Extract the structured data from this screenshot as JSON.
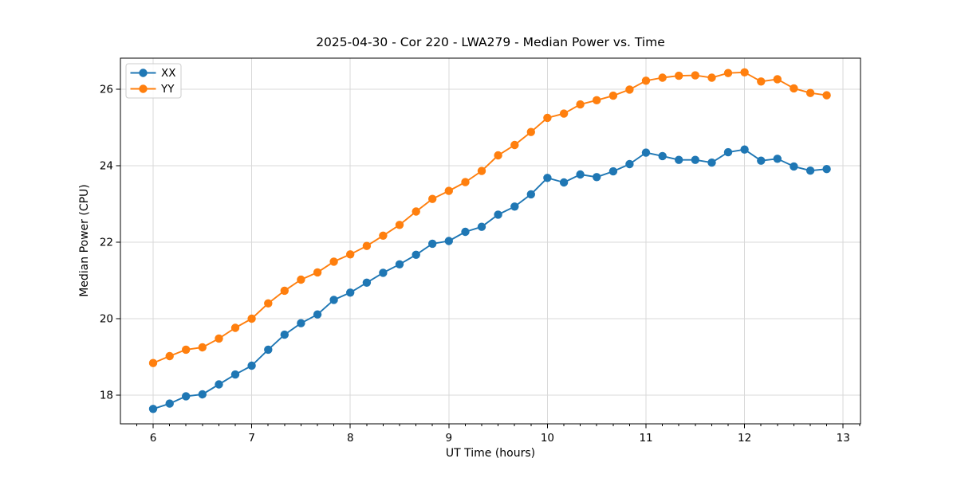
{
  "chart_data": {
    "type": "line",
    "title": "2025-04-30 - Cor 220 - LWA279 - Median Power vs. Time",
    "xlabel": "UT Time (hours)",
    "ylabel": "Median Power (CPU)",
    "xlim": [
      5.668,
      13.176
    ],
    "ylim": [
      17.25,
      26.81
    ],
    "xticks": [
      6,
      7,
      8,
      9,
      10,
      11,
      12,
      13
    ],
    "yticks": [
      18,
      20,
      22,
      24,
      26
    ],
    "x_minor_step_hours": 0.1667,
    "grid": true,
    "legend_position": "upper left",
    "x": [
      6.0,
      6.167,
      6.333,
      6.5,
      6.667,
      6.833,
      7.0,
      7.167,
      7.333,
      7.5,
      7.667,
      7.833,
      8.0,
      8.167,
      8.333,
      8.5,
      8.667,
      8.833,
      9.0,
      9.167,
      9.333,
      9.5,
      9.667,
      9.833,
      10.0,
      10.167,
      10.333,
      10.5,
      10.667,
      10.833,
      11.0,
      11.167,
      11.333,
      11.5,
      11.667,
      11.833,
      12.0,
      12.167,
      12.333,
      12.5,
      12.667,
      12.833
    ],
    "series": [
      {
        "name": "XX",
        "color": "#1f77b4",
        "values": [
          17.64,
          17.78,
          17.97,
          18.02,
          18.28,
          18.54,
          18.77,
          19.19,
          19.58,
          19.88,
          20.11,
          20.49,
          20.68,
          20.94,
          21.2,
          21.42,
          21.67,
          21.96,
          22.03,
          22.27,
          22.4,
          22.72,
          22.93,
          23.25,
          23.68,
          23.56,
          23.77,
          23.7,
          23.85,
          24.04,
          24.34,
          24.25,
          24.15,
          24.15,
          24.08,
          24.35,
          24.42,
          24.13,
          24.18,
          23.98,
          23.87,
          23.91
        ]
      },
      {
        "name": "YY",
        "color": "#ff7f0e",
        "values": [
          18.84,
          19.02,
          19.19,
          19.25,
          19.48,
          19.76,
          20.0,
          20.4,
          20.73,
          21.02,
          21.21,
          21.49,
          21.68,
          21.9,
          22.17,
          22.45,
          22.8,
          23.13,
          23.34,
          23.57,
          23.86,
          24.27,
          24.54,
          24.88,
          25.25,
          25.36,
          25.6,
          25.71,
          25.83,
          25.99,
          26.22,
          26.3,
          26.35,
          26.36,
          26.3,
          26.42,
          26.44,
          26.2,
          26.26,
          26.02,
          25.9,
          25.84
        ]
      }
    ]
  }
}
